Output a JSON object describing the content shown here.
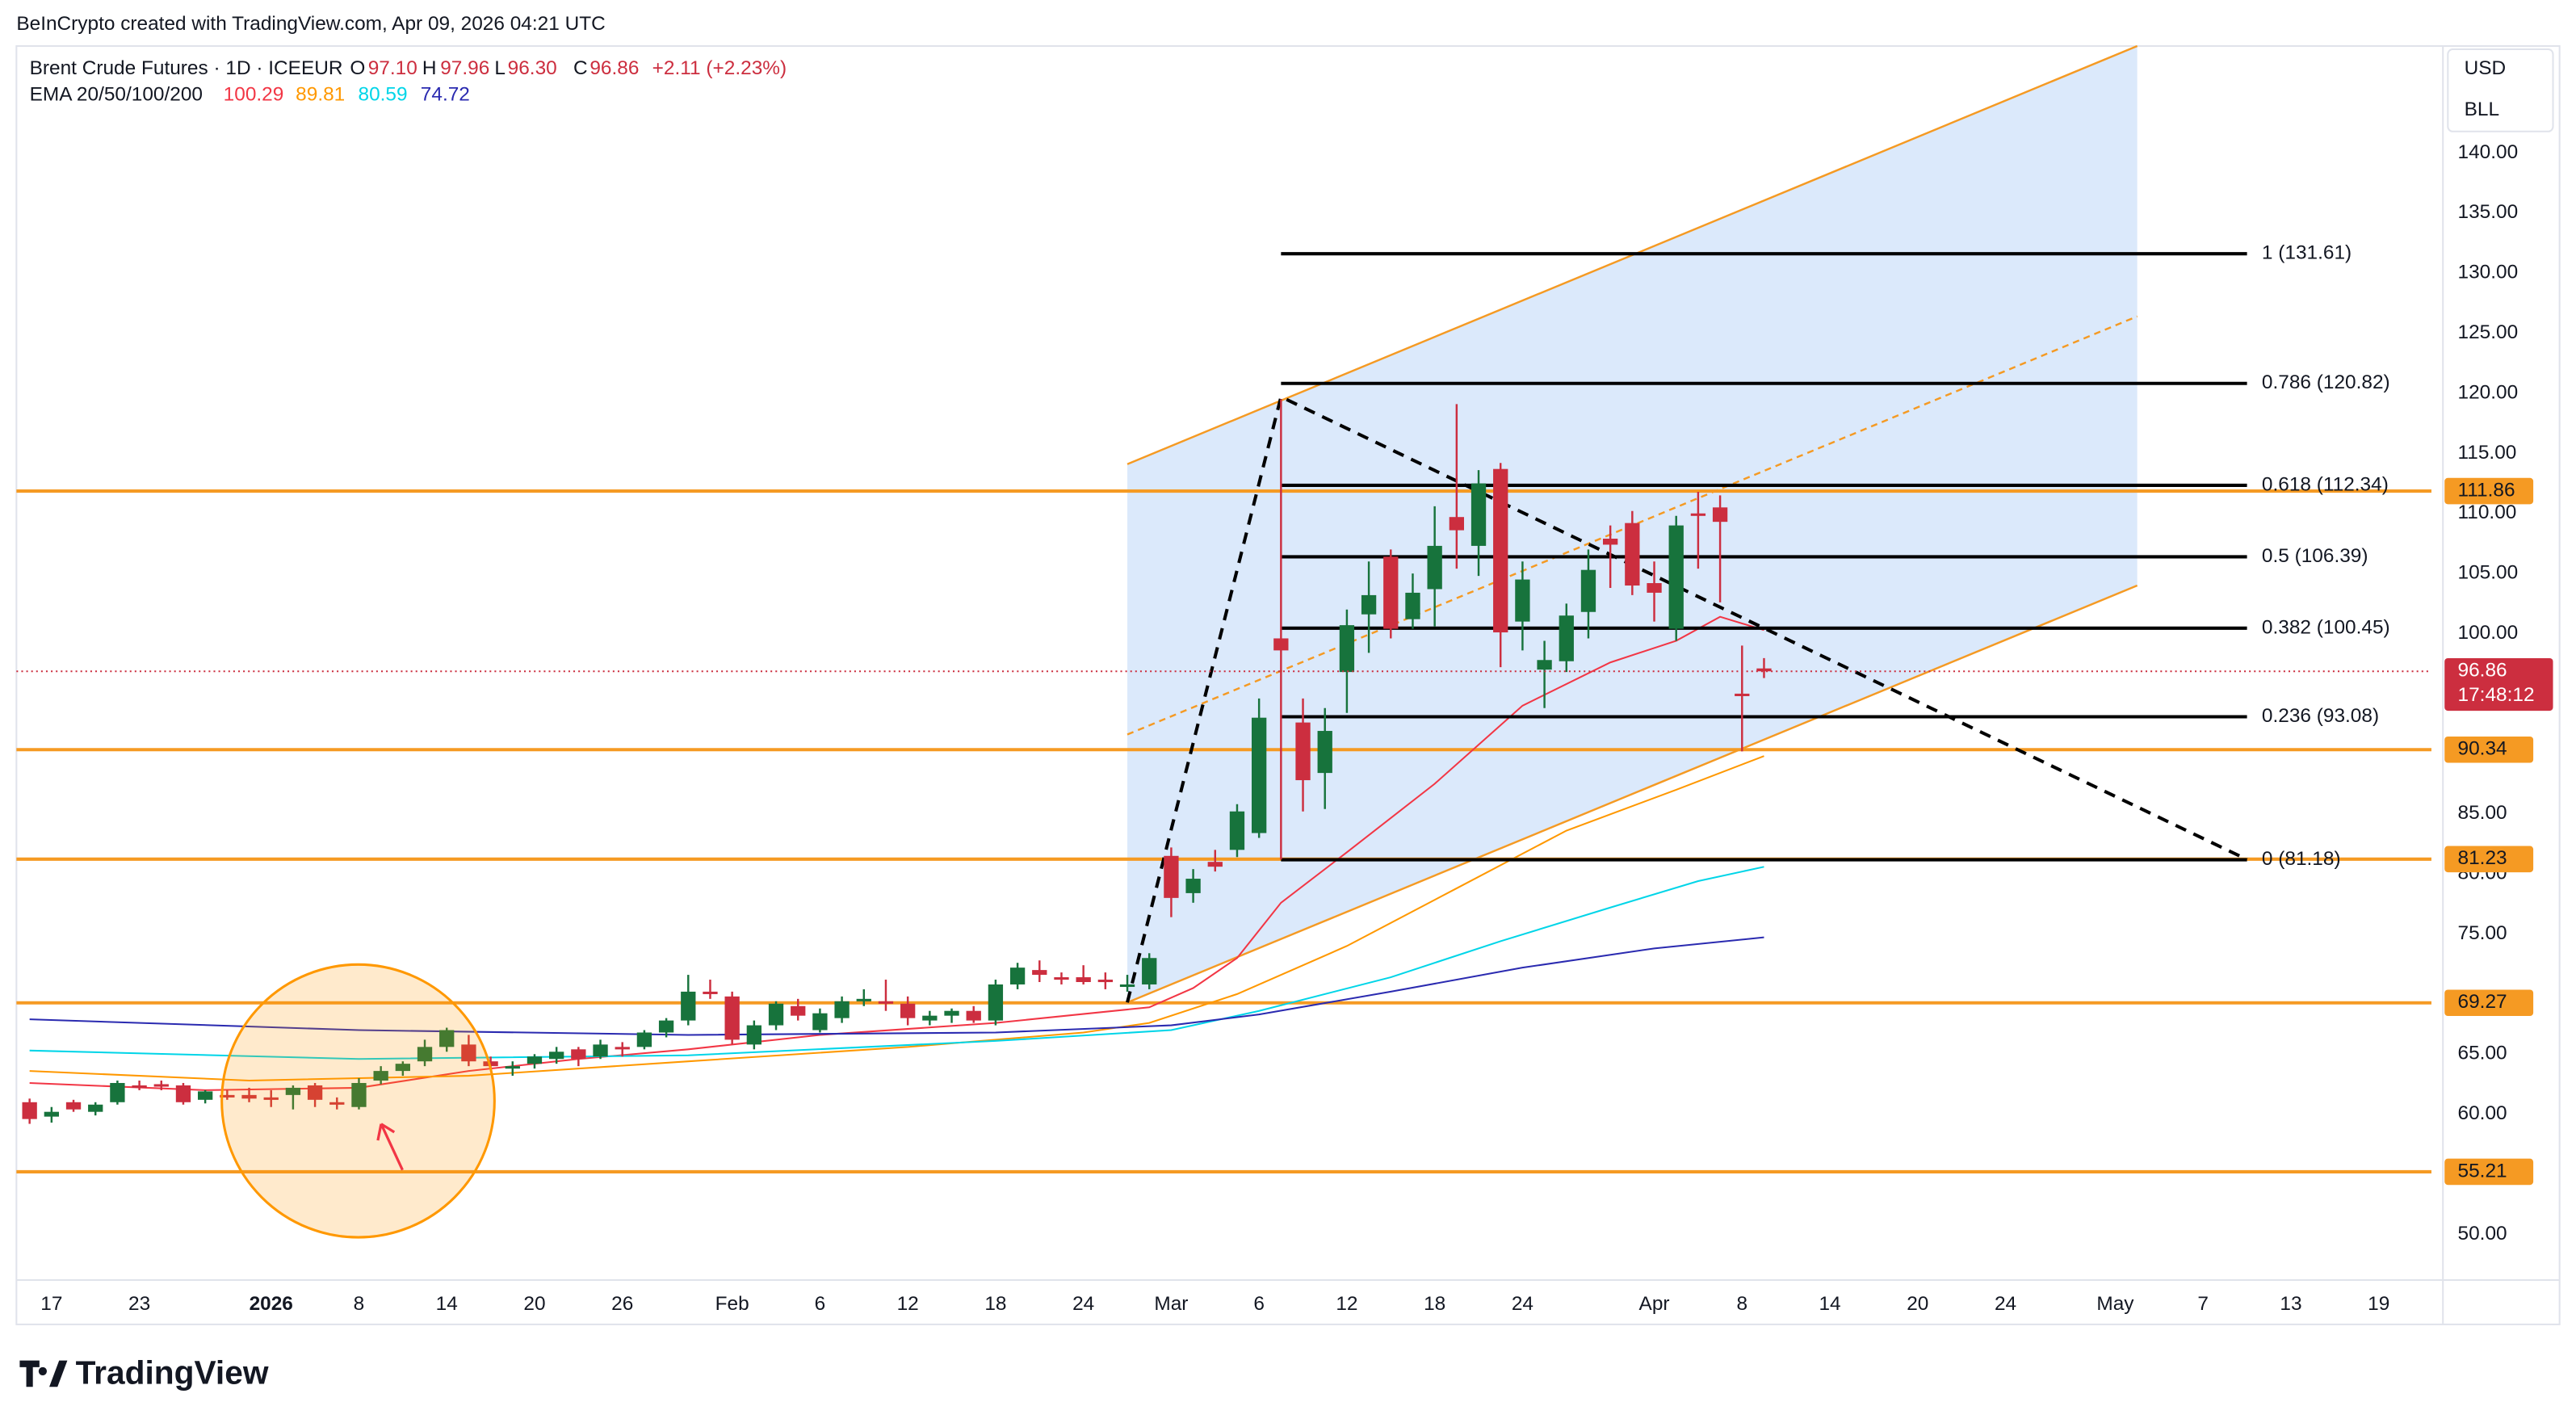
{
  "attribution": "BeInCrypto created with TradingView.com, Apr 09, 2026 04:21 UTC",
  "header": {
    "symbol": "Brent Crude Futures · 1D · ICEEUR",
    "o": "O",
    "open": "97.10",
    "h": "H",
    "high": "97.96",
    "l": "L",
    "low": "96.30",
    "c": "C",
    "close": "96.86",
    "change": "+2.11 (+2.23%)",
    "ema": "EMA 20/50/100/200"
  },
  "axis_panel": {
    "currency": "USD",
    "unit": "BLL"
  },
  "brand": "TradingView",
  "chart_data": {
    "type": "candlestick",
    "up_color": "#17733c",
    "down_color": "#cc2e3f",
    "xlim": [
      -0.6,
      109.4
    ],
    "xticks": [
      {
        "value": 1,
        "label": "17"
      },
      {
        "value": 5,
        "label": "23"
      },
      {
        "value": 11,
        "label": "2026"
      },
      {
        "value": 15,
        "label": "8"
      },
      {
        "value": 19,
        "label": "14"
      },
      {
        "value": 23,
        "label": "20"
      },
      {
        "value": 27,
        "label": "26"
      },
      {
        "value": 32,
        "label": "Feb"
      },
      {
        "value": 36,
        "label": "6"
      },
      {
        "value": 40,
        "label": "12"
      },
      {
        "value": 44,
        "label": "18"
      },
      {
        "value": 48,
        "label": "24"
      },
      {
        "value": 52,
        "label": "Mar"
      },
      {
        "value": 56,
        "label": "6"
      },
      {
        "value": 60,
        "label": "12"
      },
      {
        "value": 64,
        "label": "18"
      },
      {
        "value": 68,
        "label": "24"
      },
      {
        "value": 74,
        "label": "Apr"
      },
      {
        "value": 78,
        "label": "8"
      },
      {
        "value": 82,
        "label": "14"
      },
      {
        "value": 86,
        "label": "20"
      },
      {
        "value": 90,
        "label": "24"
      },
      {
        "value": 95,
        "label": "May"
      },
      {
        "value": 99,
        "label": "7"
      },
      {
        "value": 103,
        "label": "13"
      },
      {
        "value": 107,
        "label": "19"
      }
    ],
    "ylim": [
      46.2,
      148.9
    ],
    "yticks": [
      {
        "value": 50,
        "label": "50.00"
      },
      {
        "value": 60,
        "label": "60.00"
      },
      {
        "value": 65,
        "label": "65.00"
      },
      {
        "value": 75,
        "label": "75.00"
      },
      {
        "value": 80,
        "label": "80.00"
      },
      {
        "value": 85,
        "label": "85.00"
      },
      {
        "value": 100,
        "label": "100.00"
      },
      {
        "value": 105,
        "label": "105.00"
      },
      {
        "value": 110,
        "label": "110.00"
      },
      {
        "value": 115,
        "label": "115.00"
      },
      {
        "value": 120,
        "label": "120.00"
      },
      {
        "value": 125,
        "label": "125.00"
      },
      {
        "value": 130,
        "label": "130.00"
      },
      {
        "value": 135,
        "label": "135.00"
      },
      {
        "value": 140,
        "label": "140.00"
      }
    ],
    "candles": {
      "open": [
        61.0,
        59.8,
        61.0,
        60.2,
        61.0,
        62.4,
        62.5,
        62.4,
        61.2,
        61.6,
        61.6,
        61.4,
        61.6,
        62.4,
        61.0,
        60.6,
        62.8,
        63.6,
        64.4,
        65.6,
        65.8,
        64.4,
        63.8,
        64.2,
        64.6,
        65.4,
        64.8,
        65.6,
        65.6,
        66.8,
        67.8,
        70.2,
        69.8,
        65.8,
        67.4,
        69.0,
        67.0,
        68.0,
        69.4,
        69.4,
        69.2,
        67.8,
        68.2,
        68.6,
        67.8,
        70.8,
        72.0,
        71.4,
        71.4,
        71.2,
        70.8,
        70.8,
        81.5,
        78.4,
        81.0,
        82.0,
        83.4,
        99.6,
        92.6,
        88.4,
        96.8,
        101.6,
        106.4,
        101.2,
        103.7,
        109.7,
        107.3,
        113.7,
        101.0,
        97.0,
        97.7,
        101.8,
        107.9,
        109.2,
        104.2,
        100.4,
        110.0,
        110.5,
        95.0,
        97.1
      ],
      "high": [
        61.3,
        60.6,
        61.2,
        61.0,
        62.8,
        62.8,
        62.8,
        62.6,
        62.0,
        62.0,
        62.2,
        62.0,
        62.4,
        62.6,
        61.4,
        63.0,
        64.0,
        64.4,
        66.2,
        67.2,
        66.6,
        64.8,
        64.4,
        65.0,
        65.6,
        65.6,
        66.2,
        66.0,
        67.0,
        68.0,
        71.6,
        71.2,
        70.2,
        67.8,
        69.4,
        69.6,
        68.8,
        69.8,
        70.4,
        71.2,
        69.8,
        68.6,
        68.8,
        69.0,
        71.2,
        72.6,
        72.8,
        71.8,
        72.4,
        71.8,
        71.6,
        73.4,
        82.2,
        80.4,
        82.0,
        85.8,
        94.6,
        119.5,
        94.6,
        93.8,
        102.0,
        106.0,
        107.0,
        105.0,
        110.6,
        119.1,
        113.6,
        114.2,
        106.0,
        99.4,
        102.5,
        107.0,
        109.0,
        110.2,
        106.0,
        109.8,
        111.8,
        111.5,
        99.0,
        97.96
      ],
      "low": [
        59.2,
        59.3,
        60.2,
        59.9,
        60.8,
        62.0,
        62.0,
        60.8,
        60.9,
        61.2,
        61.0,
        60.6,
        60.4,
        60.6,
        60.4,
        60.4,
        62.5,
        63.2,
        64.0,
        65.2,
        64.0,
        63.8,
        63.2,
        63.8,
        64.2,
        64.0,
        64.6,
        64.8,
        65.4,
        66.4,
        67.4,
        69.6,
        65.8,
        65.4,
        67.0,
        67.8,
        66.8,
        67.6,
        69.0,
        68.6,
        67.4,
        67.4,
        67.6,
        67.6,
        67.4,
        70.4,
        71.0,
        70.8,
        70.8,
        70.4,
        70.2,
        70.4,
        76.4,
        77.6,
        80.2,
        81.4,
        83.0,
        81.2,
        85.2,
        85.4,
        93.4,
        98.4,
        99.6,
        100.4,
        100.6,
        105.4,
        104.8,
        97.2,
        98.6,
        93.8,
        96.8,
        99.6,
        103.8,
        103.2,
        101.0,
        99.4,
        105.4,
        102.6,
        90.2,
        96.3
      ],
      "close": [
        59.6,
        60.2,
        60.4,
        60.8,
        62.6,
        62.2,
        62.3,
        61.0,
        61.9,
        61.5,
        61.3,
        61.2,
        62.2,
        61.2,
        60.9,
        62.6,
        63.6,
        64.2,
        65.6,
        67.0,
        64.4,
        64.0,
        64.0,
        64.8,
        65.2,
        64.6,
        65.8,
        65.4,
        66.8,
        67.8,
        70.2,
        70.0,
        66.2,
        67.4,
        69.2,
        68.2,
        68.4,
        69.4,
        69.6,
        69.2,
        68.0,
        68.2,
        68.6,
        67.8,
        70.8,
        72.2,
        71.6,
        71.2,
        71.0,
        71.0,
        70.8,
        73.0,
        78.0,
        79.6,
        80.6,
        85.2,
        93.0,
        98.6,
        87.8,
        91.9,
        100.7,
        103.2,
        100.4,
        103.4,
        107.3,
        108.6,
        112.5,
        100.1,
        104.5,
        97.8,
        101.5,
        105.3,
        107.4,
        104.0,
        103.4,
        109.0,
        109.8,
        109.3,
        94.8,
        96.86
      ]
    },
    "series": [
      {
        "color": "#f23645",
        "value_label": "100.29",
        "x": [
          0,
          8,
          15,
          20,
          25,
          30,
          36,
          44,
          51,
          53,
          55,
          57,
          60,
          64,
          68,
          72,
          75,
          77,
          79
        ],
        "values": [
          62.6,
          62.0,
          62.2,
          63.6,
          64.6,
          65.4,
          66.6,
          67.6,
          68.9,
          70.5,
          73.0,
          77.6,
          81.8,
          87.5,
          94.0,
          97.6,
          99.4,
          101.4,
          100.29
        ]
      },
      {
        "color": "#ff9800",
        "value_label": "89.81",
        "x": [
          0,
          10,
          20,
          30,
          40,
          48,
          51,
          55,
          60,
          65,
          70,
          75,
          79
        ],
        "values": [
          63.6,
          62.8,
          63.2,
          64.4,
          65.6,
          66.8,
          67.6,
          70.0,
          74.0,
          78.8,
          83.6,
          87.0,
          89.81
        ]
      },
      {
        "color": "#00d5e8",
        "value_label": "80.59",
        "x": [
          0,
          15,
          30,
          44,
          52,
          56,
          62,
          67,
          72,
          76,
          79
        ],
        "values": [
          65.3,
          64.6,
          64.9,
          66.1,
          67.0,
          68.6,
          71.4,
          74.4,
          77.2,
          79.4,
          80.59
        ]
      },
      {
        "color": "#2a2ab0",
        "value_label": "74.72",
        "x": [
          0,
          15,
          30,
          44,
          52,
          56,
          62,
          68,
          74,
          79
        ],
        "values": [
          67.9,
          67.0,
          66.6,
          66.8,
          67.4,
          68.3,
          70.2,
          72.2,
          73.8,
          74.72
        ]
      }
    ],
    "levels": [
      111.86,
      90.34,
      81.23,
      69.27,
      55.21
    ],
    "level_color": "#f59a23",
    "fib": {
      "x": [
        57,
        101
      ],
      "levels": [
        {
          "value": 131.61,
          "label": "1 (131.61)"
        },
        {
          "value": 120.82,
          "label": "0.786 (120.82)"
        },
        {
          "value": 112.34,
          "label": "0.618 (112.34)"
        },
        {
          "value": 106.39,
          "label": "0.5 (106.39)"
        },
        {
          "value": 100.45,
          "label": "0.382 (100.45)"
        },
        {
          "value": 93.08,
          "label": "0.236 (93.08)"
        },
        {
          "value": 81.18,
          "label": "0 (81.18)"
        }
      ]
    },
    "channel": {
      "x": [
        50,
        96
      ],
      "upper": [
        114.1,
        148.9
      ],
      "middle": [
        91.6,
        126.4
      ],
      "lower": [
        69.3,
        104.0
      ]
    },
    "zigzag": {
      "x": [
        50,
        57,
        101
      ],
      "values": [
        69.3,
        119.7,
        81.2
      ]
    },
    "last_price": {
      "value": 96.86,
      "countdown": "17:48:12"
    }
  }
}
